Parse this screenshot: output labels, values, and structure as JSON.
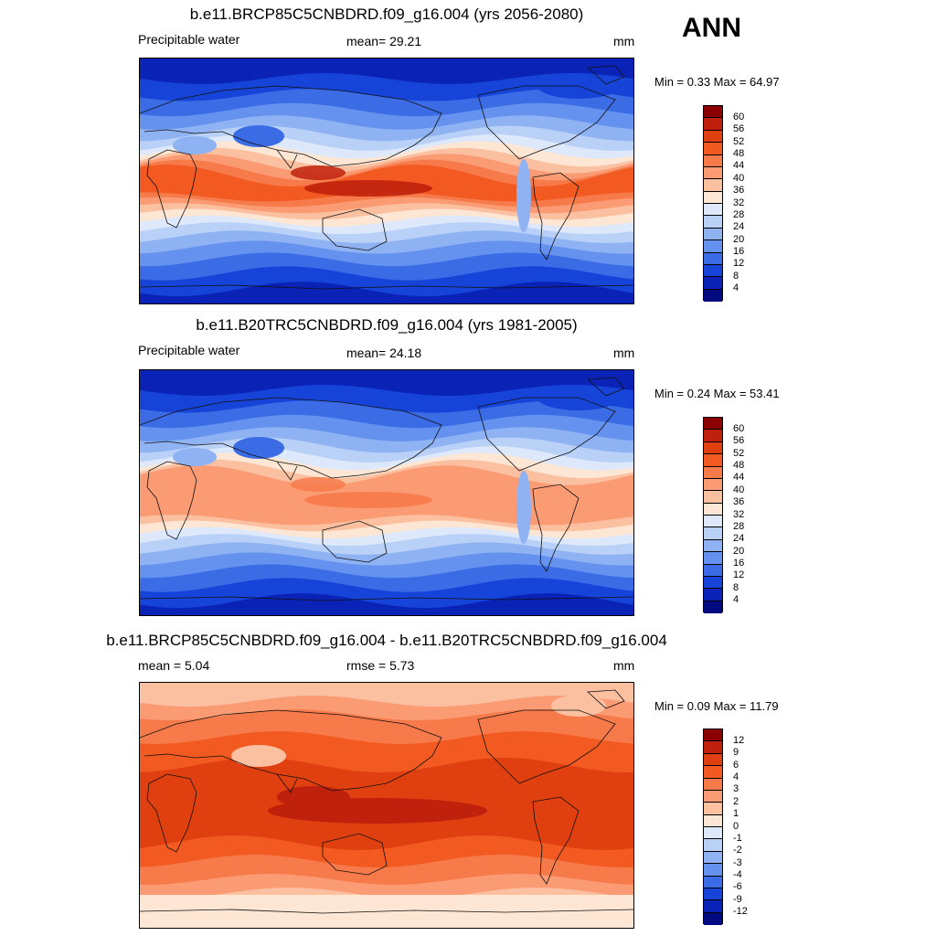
{
  "season": "ANN",
  "panels": [
    {
      "title": "b.e11.BRCP85C5CNBDRD.f09_g16.004 (yrs 2056-2080)",
      "left_label": "Precipitable water",
      "center_label": "mean=  29.21",
      "units": "mm",
      "minmax": "Min =   0.33 Max =  64.97",
      "scale": "abs",
      "variant": "future"
    },
    {
      "title": "b.e11.B20TRC5CNBDRD.f09_g16.004 (yrs 1981-2005)",
      "left_label": "Precipitable water",
      "center_label": "mean=  24.18",
      "units": "mm",
      "minmax": "Min =   0.24 Max =  53.41",
      "scale": "abs",
      "variant": "present"
    },
    {
      "title": "b.e11.BRCP85C5CNBDRD.f09_g16.004 - b.e11.B20TRC5CNBDRD.f09_g16.004",
      "left_label": "mean =   5.04",
      "center_label": "rmse =   5.73",
      "units": "mm",
      "minmax": "Min =  0.09 Max =  11.79",
      "scale": "diff",
      "variant": "diff"
    }
  ],
  "colorbars": {
    "abs": {
      "ticks": [
        "60",
        "56",
        "52",
        "48",
        "44",
        "40",
        "36",
        "32",
        "28",
        "24",
        "20",
        "16",
        "12",
        "8",
        "4"
      ],
      "colors": [
        "#8b0000",
        "#c0210c",
        "#e0400f",
        "#f25a22",
        "#f77a4a",
        "#fa9b74",
        "#fbc0a0",
        "#fde6d3",
        "#dde9fb",
        "#b9d1f7",
        "#8fb2f2",
        "#6492ee",
        "#3b6ce6",
        "#1644d8",
        "#0a22b5",
        "#020a80"
      ]
    },
    "diff": {
      "ticks": [
        "12",
        "9",
        "6",
        "4",
        "3",
        "2",
        "1",
        "0",
        "-1",
        "-2",
        "-3",
        "-4",
        "-6",
        "-9",
        "-12"
      ],
      "colors": [
        "#8b0000",
        "#c0210c",
        "#e0400f",
        "#f25a22",
        "#f77a4a",
        "#fa9b74",
        "#fbc0a0",
        "#fde6d3",
        "#dde9fb",
        "#b9d1f7",
        "#8fb2f2",
        "#6492ee",
        "#3b6ce6",
        "#1644d8",
        "#0a22b5",
        "#020a80"
      ]
    }
  }
}
